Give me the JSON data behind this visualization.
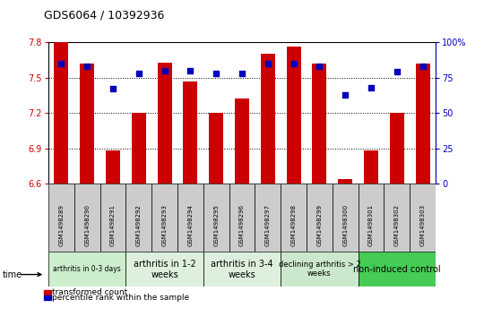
{
  "title": "GDS6064 / 10392936",
  "samples": [
    "GSM1498289",
    "GSM1498290",
    "GSM1498291",
    "GSM1498292",
    "GSM1498293",
    "GSM1498294",
    "GSM1498295",
    "GSM1498296",
    "GSM1498297",
    "GSM1498298",
    "GSM1498299",
    "GSM1498300",
    "GSM1498301",
    "GSM1498302",
    "GSM1498303"
  ],
  "bar_values": [
    7.8,
    7.62,
    6.88,
    7.2,
    7.63,
    7.47,
    7.2,
    7.32,
    7.7,
    7.76,
    7.62,
    6.64,
    6.88,
    7.2,
    7.62
  ],
  "dot_values": [
    85,
    83,
    67,
    78,
    80,
    80,
    78,
    78,
    85,
    85,
    83,
    63,
    68,
    79,
    83
  ],
  "bar_bottom": 6.6,
  "ylim_left": [
    6.6,
    7.8
  ],
  "ylim_right": [
    0,
    100
  ],
  "bar_color": "#cc0000",
  "dot_color": "#0000bb",
  "yticks_left": [
    6.6,
    6.9,
    7.2,
    7.5,
    7.8
  ],
  "yticks_right": [
    0,
    25,
    50,
    75,
    100
  ],
  "groups": [
    {
      "label": "arthritis in 0-3 days",
      "start": 0,
      "end": 3,
      "color": "#cceecc",
      "fontsize": 5.5
    },
    {
      "label": "arthritis in 1-2\nweeks",
      "start": 3,
      "end": 6,
      "color": "#ddf0dd",
      "fontsize": 7
    },
    {
      "label": "arthritis in 3-4\nweeks",
      "start": 6,
      "end": 9,
      "color": "#ddf0dd",
      "fontsize": 7
    },
    {
      "label": "declining arthritis > 2\nweeks",
      "start": 9,
      "end": 12,
      "color": "#cce8cc",
      "fontsize": 6
    },
    {
      "label": "non-induced control",
      "start": 12,
      "end": 15,
      "color": "#44cc55",
      "fontsize": 7
    }
  ],
  "legend_bar_label": "transformed count",
  "legend_dot_label": "percentile rank within the sample",
  "title_fontsize": 9,
  "tick_fontsize": 7,
  "sample_fontsize": 5,
  "group_label_fontsize": 7
}
